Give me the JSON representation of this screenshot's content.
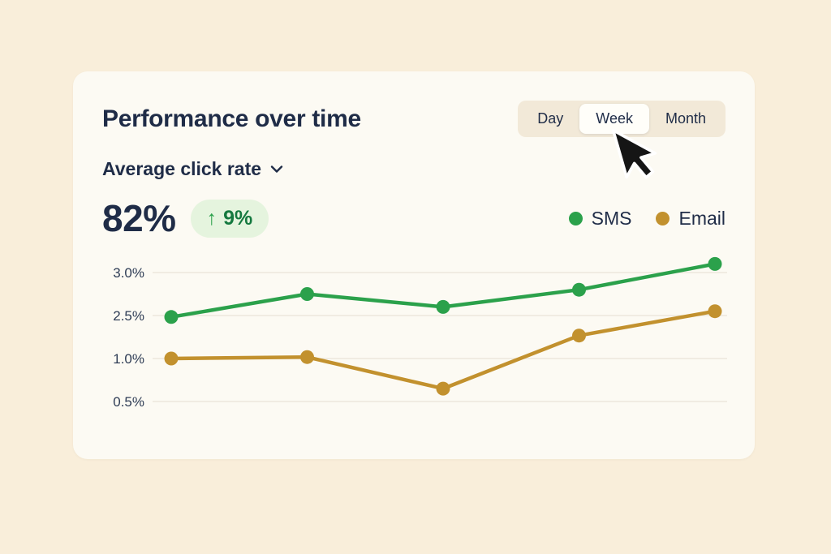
{
  "card": {
    "title": "Performance over time",
    "metric_selector": {
      "label": "Average click rate"
    },
    "stat": {
      "value": "82%",
      "delta_arrow": "↑",
      "delta": "9%"
    },
    "time_tabs": [
      {
        "label": "Day",
        "active": false
      },
      {
        "label": "Week",
        "active": true
      },
      {
        "label": "Month",
        "active": false
      }
    ]
  },
  "legend": [
    {
      "name": "SMS",
      "color": "#2BA14B"
    },
    {
      "name": "Email",
      "color": "#C2912E"
    }
  ],
  "chart_data": {
    "type": "line",
    "x": [
      1,
      2,
      3,
      4,
      5
    ],
    "series": [
      {
        "name": "SMS",
        "color": "#2BA14B",
        "values": [
          2.45,
          2.75,
          2.6,
          2.8,
          3.1
        ]
      },
      {
        "name": "Email",
        "color": "#C2912E",
        "values": [
          1.0,
          1.05,
          0.65,
          1.8,
          2.55
        ]
      }
    ],
    "yticks": [
      3.0,
      2.5,
      1.0,
      0.5
    ],
    "ytick_labels": [
      "3.0%",
      "2.5%",
      "1.0%",
      "0.5%"
    ],
    "grid": true,
    "legend_position": "top-right",
    "title": "Performance over time"
  },
  "colors": {
    "background": "#F9EEDA",
    "card": "#FCFAF3",
    "navy": "#1F2C47",
    "green": "#2BA14B",
    "gold": "#C2912E",
    "pill_bg": "#E5F4DE",
    "pill_text": "#15793F",
    "gridline": "#E9E4D7"
  }
}
